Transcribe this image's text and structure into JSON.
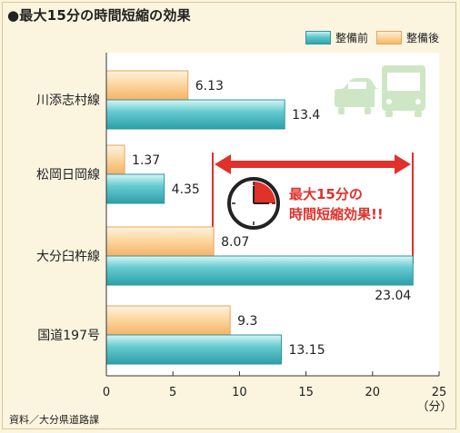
{
  "title": "●最大15分の時間短縮の効果",
  "legend": {
    "before": "整備前",
    "after": "整備後"
  },
  "source": "資料／大分県道路課",
  "unit": "（分）",
  "annotation": {
    "line1": "最大15分の",
    "line2": "時間短縮効果!!"
  },
  "colors": {
    "before": "#3fb2b8",
    "after": "#f9c683",
    "accent": "#e0312b",
    "icon": "#cfe6c6"
  },
  "icons": [
    "car-icon",
    "bus-icon",
    "clock-icon",
    "double-arrow-icon"
  ],
  "chart_data": {
    "type": "bar",
    "orientation": "horizontal",
    "categories": [
      "川添志村線",
      "松岡日岡線",
      "大分臼杵線",
      "国道197号"
    ],
    "series": [
      {
        "name": "整備後",
        "values": [
          6.13,
          1.37,
          8.07,
          9.3
        ],
        "labels": [
          "6.13",
          "1.37",
          "8.07",
          "9.3"
        ]
      },
      {
        "name": "整備前",
        "values": [
          13.4,
          4.35,
          23.04,
          13.15
        ],
        "labels": [
          "13.4",
          "4.35",
          "23.04",
          "13.15"
        ]
      }
    ],
    "xlim": [
      0,
      25
    ],
    "xticks": [
      "0",
      "5",
      "10",
      "15",
      "20",
      "25"
    ],
    "xlabel": "（分）",
    "grid": false
  }
}
